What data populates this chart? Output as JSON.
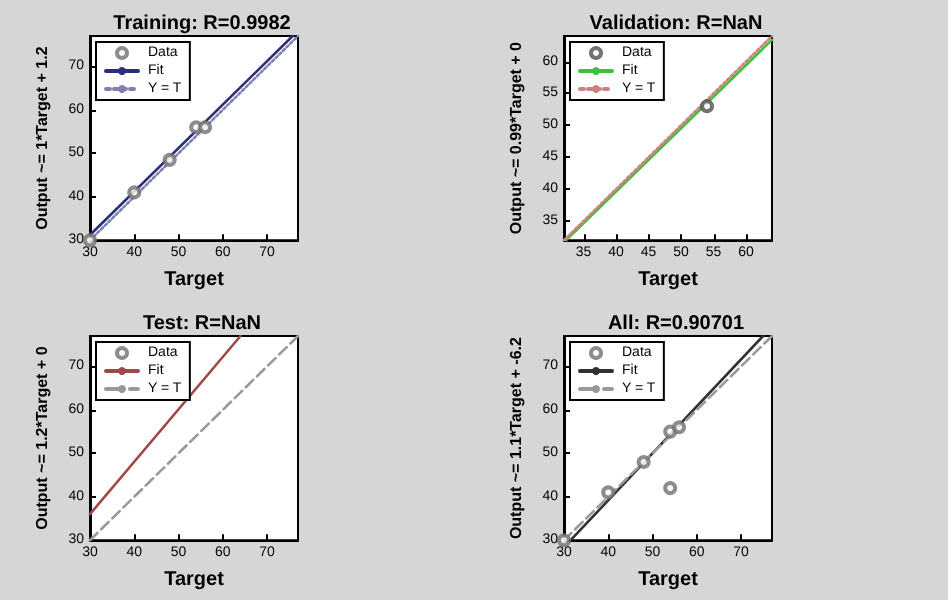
{
  "chart_data": [
    {
      "type": "scatter",
      "title": "Training: R=0.9982",
      "xlabel": "Target",
      "ylabel": "Output ~= 1*Target + 1.2",
      "xlim": [
        30,
        77
      ],
      "ylim": [
        30,
        77
      ],
      "xticks": [
        30,
        40,
        50,
        60,
        70
      ],
      "yticks": [
        30,
        40,
        50,
        60,
        70
      ],
      "grid": false,
      "legend": "top left",
      "series": [
        {
          "name": "Data",
          "marker": "circle",
          "color": "#707070",
          "x": [
            30,
            40,
            48,
            54,
            56
          ],
          "values": [
            30,
            41,
            48.5,
            56,
            56
          ]
        },
        {
          "name": "Fit",
          "type": "line",
          "marker": "none",
          "line_style": "solid",
          "color": "#2b2f7a",
          "x": [
            30,
            75.8
          ],
          "values": [
            31.2,
            77
          ]
        },
        {
          "name": "Y = T",
          "type": "line",
          "marker": "none",
          "line_style": "dotted",
          "color": "#8080b0",
          "x": [
            30,
            77
          ],
          "values": [
            30,
            77
          ]
        }
      ]
    },
    {
      "type": "scatter",
      "title": "Validation: R=NaN",
      "xlabel": "Target",
      "ylabel": "Output ~= 0.99*Target + 0",
      "xlim": [
        32,
        64
      ],
      "ylim": [
        32,
        64
      ],
      "xticks": [
        35,
        40,
        45,
        50,
        55,
        60
      ],
      "yticks": [
        35,
        40,
        45,
        50,
        55,
        60
      ],
      "grid": false,
      "legend": "top left",
      "series": [
        {
          "name": "Data",
          "marker": "circle",
          "color": "#505050",
          "x": [
            54
          ],
          "values": [
            53
          ]
        },
        {
          "name": "Fit",
          "type": "line",
          "marker": "none",
          "line_style": "solid",
          "color": "#40c040",
          "x": [
            32.3,
            64
          ],
          "values": [
            32,
            63.4
          ]
        },
        {
          "name": "Y = T",
          "type": "line",
          "marker": "none",
          "line_style": "dotted",
          "color": "#d08080",
          "x": [
            32,
            64
          ],
          "values": [
            32,
            64
          ]
        }
      ]
    },
    {
      "type": "scatter",
      "title": "Test: R=NaN",
      "xlabel": "Target",
      "ylabel": "Output ~= 1.2*Target + 0",
      "xlim": [
        30,
        77
      ],
      "ylim": [
        30,
        77
      ],
      "xticks": [
        30,
        40,
        50,
        60,
        70
      ],
      "yticks": [
        30,
        40,
        50,
        60,
        70
      ],
      "grid": false,
      "legend": "top left",
      "series": [
        {
          "name": "Data",
          "marker": "circle",
          "color": "#707070"
        },
        {
          "name": "Fit",
          "type": "line",
          "marker": "none",
          "line_style": "solid",
          "color": "#a04848",
          "x": [
            30,
            64
          ],
          "values": [
            36,
            77
          ]
        },
        {
          "name": "Y = T",
          "type": "line",
          "marker": "none",
          "line_style": "dashed",
          "color": "#999999",
          "x": [
            30,
            77
          ],
          "values": [
            30,
            77
          ]
        }
      ]
    },
    {
      "type": "scatter",
      "title": "All: R=0.90701",
      "xlabel": "Target",
      "ylabel": "Output ~= 1.1*Target + -6.2",
      "xlim": [
        30,
        77
      ],
      "ylim": [
        30,
        77
      ],
      "xticks": [
        30,
        40,
        50,
        60,
        70
      ],
      "yticks": [
        30,
        40,
        50,
        60,
        70
      ],
      "grid": false,
      "legend": "top left",
      "series": [
        {
          "name": "Data",
          "marker": "circle",
          "color": "#707070",
          "x": [
            30,
            40,
            48,
            54,
            54,
            56
          ],
          "values": [
            30,
            41,
            48,
            42,
            55,
            56
          ]
        },
        {
          "name": "Fit",
          "type": "line",
          "marker": "none",
          "line_style": "solid",
          "color": "#303030",
          "x": [
            31.5,
            75
          ],
          "values": [
            30,
            77
          ]
        },
        {
          "name": "Y = T",
          "type": "line",
          "marker": "none",
          "line_style": "dashed",
          "color": "#999999",
          "x": [
            30,
            77
          ],
          "values": [
            30,
            77
          ]
        }
      ]
    }
  ]
}
